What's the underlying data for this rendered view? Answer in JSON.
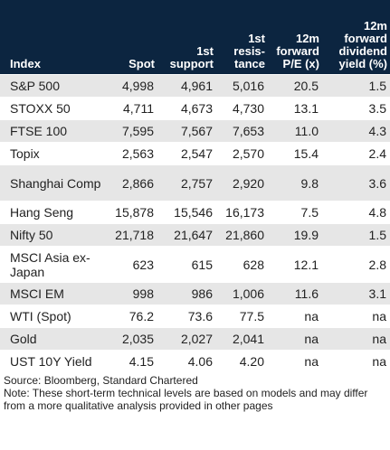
{
  "table": {
    "headers": [
      {
        "key": "index",
        "label": "Index"
      },
      {
        "key": "spot",
        "label": "Spot"
      },
      {
        "key": "support",
        "label": "1st support"
      },
      {
        "key": "resistance",
        "label": "1st resis-tance"
      },
      {
        "key": "pe",
        "label": "12m forward P/E (x)"
      },
      {
        "key": "dy",
        "label": "12m forward dividend yield (%)"
      }
    ],
    "rows": [
      {
        "index": "S&P 500",
        "spot": "4,998",
        "support": "4,961",
        "resistance": "5,016",
        "pe": "20.5",
        "dy": "1.5"
      },
      {
        "index": "STOXX 50",
        "spot": "4,711",
        "support": "4,673",
        "resistance": "4,730",
        "pe": "13.1",
        "dy": "3.5"
      },
      {
        "index": "FTSE 100",
        "spot": "7,595",
        "support": "7,567",
        "resistance": "7,653",
        "pe": "11.0",
        "dy": "4.3"
      },
      {
        "index": "Topix",
        "spot": "2,563",
        "support": "2,547",
        "resistance": "2,570",
        "pe": "15.4",
        "dy": "2.4"
      },
      {
        "index": "Shanghai Comp",
        "spot": "2,866",
        "support": "2,757",
        "resistance": "2,920",
        "pe": "9.8",
        "dy": "3.6"
      },
      {
        "index": "Hang Seng",
        "spot": "15,878",
        "support": "15,546",
        "resistance": "16,173",
        "pe": "7.5",
        "dy": "4.8"
      },
      {
        "index": "Nifty 50",
        "spot": "21,718",
        "support": "21,647",
        "resistance": "21,860",
        "pe": "19.9",
        "dy": "1.5"
      },
      {
        "index": "MSCI Asia ex-Japan",
        "spot": "623",
        "support": "615",
        "resistance": "628",
        "pe": "12.1",
        "dy": "2.8"
      },
      {
        "index": "MSCI EM",
        "spot": "998",
        "support": "986",
        "resistance": "1,006",
        "pe": "11.6",
        "dy": "3.1"
      },
      {
        "index": "WTI (Spot)",
        "spot": "76.2",
        "support": "73.6",
        "resistance": "77.5",
        "pe": "na",
        "dy": "na"
      },
      {
        "index": "Gold",
        "spot": "2,035",
        "support": "2,027",
        "resistance": "2,041",
        "pe": "na",
        "dy": "na"
      },
      {
        "index": "UST 10Y Yield",
        "spot": "4.15",
        "support": "4.06",
        "resistance": "4.20",
        "pe": "na",
        "dy": "na"
      }
    ]
  },
  "footer": {
    "source": "Source: Bloomberg, Standard Chartered",
    "note": "Note: These short-term technical levels are based on models and may differ from a more qualitative analysis provided in other pages"
  },
  "colors": {
    "header_bg": "#0c2540",
    "header_text": "#ffffff",
    "row_shade": "#e6e6e6",
    "row_plain": "#ffffff"
  }
}
